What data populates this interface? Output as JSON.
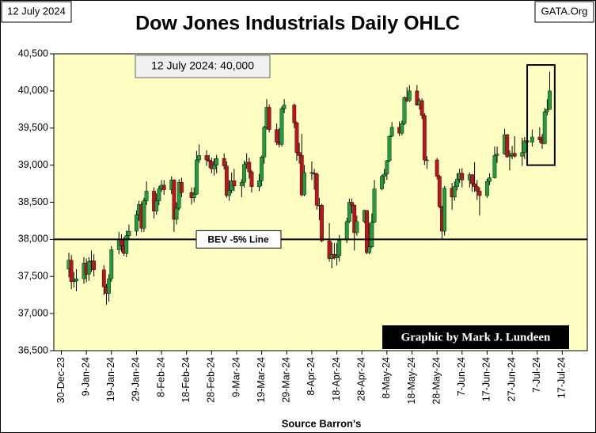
{
  "chart_data": {
    "type": "candlestick",
    "title": "Dow Jones Industrials Daily OHLC",
    "date_label": "12 July 2024",
    "site_label": "GATA.Org",
    "annotation": "12 July 2024: 40,000",
    "credit": "Graphic by Mark J. Lundeen",
    "xlabel": "Source Barron's",
    "reference_line": {
      "value": 38000,
      "label": "BEV -5% Line"
    },
    "highlight": {
      "xlim": [
        "2024-07-03",
        "2024-07-14"
      ],
      "ylim": [
        39000,
        40350
      ]
    },
    "up_color": "#1f9d3a",
    "down_color": "#c0121b",
    "background": "#ffffc4",
    "xlim": [
      "2023-12-27",
      "2024-07-27"
    ],
    "ylim": [
      36500,
      40500
    ],
    "yticks": [
      {
        "value": 36500,
        "label": "36,500"
      },
      {
        "value": 37000,
        "label": "37,000"
      },
      {
        "value": 37500,
        "label": "37,500"
      },
      {
        "value": 38000,
        "label": "38,000"
      },
      {
        "value": 38500,
        "label": "38,500"
      },
      {
        "value": 39000,
        "label": "39,000"
      },
      {
        "value": 39500,
        "label": "39,500"
      },
      {
        "value": 40000,
        "label": "40,000"
      },
      {
        "value": 40500,
        "label": "40,500"
      }
    ],
    "xticks": [
      {
        "value": "2023-12-30",
        "label": "30-Dec-23"
      },
      {
        "value": "2024-01-09",
        "label": "9-Jan-24"
      },
      {
        "value": "2024-01-19",
        "label": "19-Jan-24"
      },
      {
        "value": "2024-01-29",
        "label": "29-Jan-24"
      },
      {
        "value": "2024-02-08",
        "label": "8-Feb-24"
      },
      {
        "value": "2024-02-18",
        "label": "18-Feb-24"
      },
      {
        "value": "2024-02-28",
        "label": "28-Feb-24"
      },
      {
        "value": "2024-03-09",
        "label": "9-Mar-24"
      },
      {
        "value": "2024-03-19",
        "label": "19-Mar-24"
      },
      {
        "value": "2024-03-29",
        "label": "29-Mar-24"
      },
      {
        "value": "2024-04-08",
        "label": "8-Apr-24"
      },
      {
        "value": "2024-04-18",
        "label": "18-Apr-24"
      },
      {
        "value": "2024-04-28",
        "label": "28-Apr-24"
      },
      {
        "value": "2024-05-08",
        "label": "8-May-24"
      },
      {
        "value": "2024-05-18",
        "label": "18-May-24"
      },
      {
        "value": "2024-05-28",
        "label": "28-May-24"
      },
      {
        "value": "2024-06-07",
        "label": "7-Jun-24"
      },
      {
        "value": "2024-06-17",
        "label": "17-Jun-24"
      },
      {
        "value": "2024-06-27",
        "label": "27-Jun-24"
      },
      {
        "value": "2024-07-07",
        "label": "7-Jul-24"
      },
      {
        "value": "2024-07-17",
        "label": "17-Jul-24"
      }
    ],
    "x": [
      "2024-01-02",
      "2024-01-03",
      "2024-01-04",
      "2024-01-05",
      "2024-01-08",
      "2024-01-09",
      "2024-01-10",
      "2024-01-11",
      "2024-01-12",
      "2024-01-16",
      "2024-01-17",
      "2024-01-18",
      "2024-01-19",
      "2024-01-22",
      "2024-01-23",
      "2024-01-24",
      "2024-01-25",
      "2024-01-26",
      "2024-01-29",
      "2024-01-30",
      "2024-01-31",
      "2024-02-01",
      "2024-02-02",
      "2024-02-05",
      "2024-02-06",
      "2024-02-07",
      "2024-02-08",
      "2024-02-09",
      "2024-02-12",
      "2024-02-13",
      "2024-02-14",
      "2024-02-15",
      "2024-02-16",
      "2024-02-20",
      "2024-02-21",
      "2024-02-22",
      "2024-02-23",
      "2024-02-26",
      "2024-02-27",
      "2024-02-28",
      "2024-02-29",
      "2024-03-01",
      "2024-03-04",
      "2024-03-05",
      "2024-03-06",
      "2024-03-07",
      "2024-03-08",
      "2024-03-11",
      "2024-03-12",
      "2024-03-13",
      "2024-03-14",
      "2024-03-15",
      "2024-03-18",
      "2024-03-19",
      "2024-03-20",
      "2024-03-21",
      "2024-03-22",
      "2024-03-25",
      "2024-03-26",
      "2024-03-27",
      "2024-03-28",
      "2024-04-01",
      "2024-04-02",
      "2024-04-03",
      "2024-04-04",
      "2024-04-05",
      "2024-04-08",
      "2024-04-09",
      "2024-04-10",
      "2024-04-11",
      "2024-04-12",
      "2024-04-15",
      "2024-04-16",
      "2024-04-17",
      "2024-04-18",
      "2024-04-19",
      "2024-04-22",
      "2024-04-23",
      "2024-04-24",
      "2024-04-25",
      "2024-04-26",
      "2024-04-29",
      "2024-04-30",
      "2024-05-01",
      "2024-05-02",
      "2024-05-03",
      "2024-05-06",
      "2024-05-07",
      "2024-05-08",
      "2024-05-09",
      "2024-05-10",
      "2024-05-13",
      "2024-05-14",
      "2024-05-15",
      "2024-05-16",
      "2024-05-17",
      "2024-05-20",
      "2024-05-21",
      "2024-05-22",
      "2024-05-23",
      "2024-05-24",
      "2024-05-28",
      "2024-05-29",
      "2024-05-30",
      "2024-05-31",
      "2024-06-03",
      "2024-06-04",
      "2024-06-05",
      "2024-06-06",
      "2024-06-07",
      "2024-06-10",
      "2024-06-11",
      "2024-06-12",
      "2024-06-13",
      "2024-06-14",
      "2024-06-17",
      "2024-06-18",
      "2024-06-20",
      "2024-06-21",
      "2024-06-24",
      "2024-06-25",
      "2024-06-26",
      "2024-06-27",
      "2024-06-28",
      "2024-07-01",
      "2024-07-02",
      "2024-07-03",
      "2024-07-05",
      "2024-07-08",
      "2024-07-09",
      "2024-07-10",
      "2024-07-11",
      "2024-07-12"
    ],
    "open": [
      37600,
      37720,
      37430,
      37440,
      37470,
      37680,
      37530,
      37700,
      37710,
      37590,
      37360,
      37270,
      37470,
      37860,
      38000,
      37910,
      37810,
      38050,
      38110,
      38330,
      38470,
      38150,
      38520,
      38650,
      38380,
      38520,
      38680,
      38730,
      38670,
      38800,
      38270,
      38420,
      38770,
      38630,
      38560,
      38610,
      39070,
      39130,
      39070,
      39050,
      38950,
      39000,
      39090,
      38990,
      38590,
      38660,
      38790,
      38720,
      38770,
      39010,
      39040,
      38910,
      38710,
      38790,
      39110,
      39510,
      39780,
      39480,
      39310,
      39280,
      39760,
      39810,
      39570,
      39170,
      39130,
      38600,
      38900,
      38890,
      38880,
      38460,
      38460,
      37980,
      37740,
      37800,
      37750,
      37780,
      37990,
      38240,
      38500,
      38460,
      38090,
      38240,
      38390,
      37820,
      37900,
      38230,
      38680,
      38850,
      38880,
      39060,
      39390,
      39510,
      39430,
      39560,
      39910,
      39870,
      40000,
      39810,
      39870,
      39670,
      39070,
      39070,
      38850,
      38440,
      38110,
      38690,
      38570,
      38710,
      38810,
      38890,
      38800,
      38870,
      38750,
      38710,
      38650,
      38590,
      38780,
      38830,
      39130,
      39150,
      39410,
      39110,
      39130,
      39160,
      39120,
      39170,
      39330,
      39310,
      39380,
      39340,
      39290,
      39720,
      39750
    ],
    "high": [
      37820,
      37790,
      37560,
      37600,
      37760,
      37740,
      37760,
      37850,
      37800,
      37650,
      37400,
      37530,
      37910,
      38100,
      38070,
      38030,
      38120,
      38200,
      38390,
      38520,
      38510,
      38560,
      38780,
      38700,
      38620,
      38720,
      38800,
      38800,
      38850,
      38810,
      38500,
      38810,
      38830,
      38700,
      38700,
      39190,
      39280,
      39200,
      39140,
      39100,
      39090,
      39140,
      39160,
      39050,
      38800,
      38900,
      38950,
      38810,
      39060,
      39160,
      39100,
      38930,
      38880,
      39130,
      39530,
      39890,
      39820,
      39560,
      39500,
      39790,
      39890,
      39830,
      39590,
      39300,
      39420,
      39000,
      39050,
      38950,
      38900,
      38560,
      38480,
      38220,
      37960,
      37950,
      37950,
      38060,
      38290,
      38550,
      38550,
      38470,
      38320,
      38400,
      38390,
      38220,
      38350,
      38800,
      38870,
      38950,
      39070,
      39400,
      39580,
      39590,
      39600,
      39930,
      40050,
      40080,
      40080,
      39900,
      39900,
      39700,
      39120,
      39100,
      38870,
      38450,
      38720,
      38760,
      38780,
      38890,
      38950,
      38960,
      38900,
      38880,
      39040,
      38800,
      38700,
      38820,
      38890,
      39250,
      39250,
      39490,
      39420,
      39200,
      39260,
      39390,
      39370,
      39380,
      39400,
      39480,
      39510,
      39420,
      39770,
      39890,
      40260
    ],
    "low": [
      37490,
      37330,
      37350,
      37300,
      37400,
      37420,
      37440,
      37560,
      37500,
      37250,
      37120,
      37160,
      37430,
      37800,
      37830,
      37780,
      37760,
      37990,
      38050,
      38250,
      38100,
      38100,
      38460,
      38280,
      38330,
      38460,
      38640,
      38600,
      38610,
      38100,
      38200,
      38390,
      38570,
      38470,
      38500,
      38600,
      39030,
      38990,
      38960,
      38890,
      38860,
      38890,
      38940,
      38560,
      38520,
      38620,
      38650,
      38570,
      38700,
      38950,
      38820,
      38630,
      38650,
      38720,
      39020,
      39480,
      39440,
      39270,
      39240,
      39250,
      39700,
      39500,
      39060,
      39020,
      38580,
      38580,
      38800,
      38670,
      38400,
      38260,
      37960,
      37700,
      37610,
      37730,
      37650,
      37700,
      37950,
      38220,
      38350,
      37850,
      38050,
      38220,
      37800,
      37800,
      37880,
      38220,
      38660,
      38750,
      38800,
      39040,
      39380,
      39390,
      39400,
      39540,
      39850,
      39850,
      39800,
      39750,
      39620,
      39000,
      38950,
      38810,
      38420,
      38000,
      38050,
      38400,
      38520,
      38660,
      38760,
      38700,
      38700,
      38640,
      38640,
      38530,
      38320,
      38560,
      38730,
      38820,
      39030,
      39140,
      39100,
      38930,
      39080,
      39100,
      38990,
      39080,
      39260,
      39250,
      39300,
      39220,
      39280,
      39670,
      39780
    ],
    "close": [
      37720,
      37430,
      37440,
      37470,
      37680,
      37530,
      37700,
      37710,
      37590,
      37360,
      37270,
      37470,
      37860,
      38000,
      37910,
      37810,
      38050,
      38110,
      38330,
      38470,
      38150,
      38520,
      38650,
      38380,
      38520,
      38680,
      38730,
      38670,
      38800,
      38270,
      38420,
      38770,
      38630,
      38560,
      38610,
      39070,
      39130,
      39070,
      39050,
      38950,
      39000,
      39090,
      38990,
      38590,
      38660,
      38790,
      38720,
      38770,
      39010,
      39040,
      38910,
      38710,
      38790,
      39110,
      39510,
      39780,
      39480,
      39310,
      39280,
      39760,
      39810,
      39570,
      39170,
      39130,
      38600,
      38900,
      38890,
      38880,
      38460,
      38460,
      37980,
      37740,
      37800,
      37750,
      37780,
      37990,
      38240,
      38500,
      38460,
      38090,
      38240,
      38390,
      37820,
      37900,
      38230,
      38680,
      38850,
      38880,
      39060,
      39390,
      39510,
      39430,
      39560,
      39910,
      39870,
      40000,
      39810,
      39870,
      39670,
      39070,
      39070,
      38850,
      38440,
      38110,
      38690,
      38570,
      38710,
      38810,
      38890,
      38800,
      38870,
      38750,
      38710,
      38650,
      38590,
      38780,
      38830,
      39130,
      39150,
      39410,
      39110,
      39130,
      39160,
      39120,
      39170,
      39330,
      39310,
      39380,
      39340,
      39290,
      39720,
      39750,
      40000
    ]
  }
}
